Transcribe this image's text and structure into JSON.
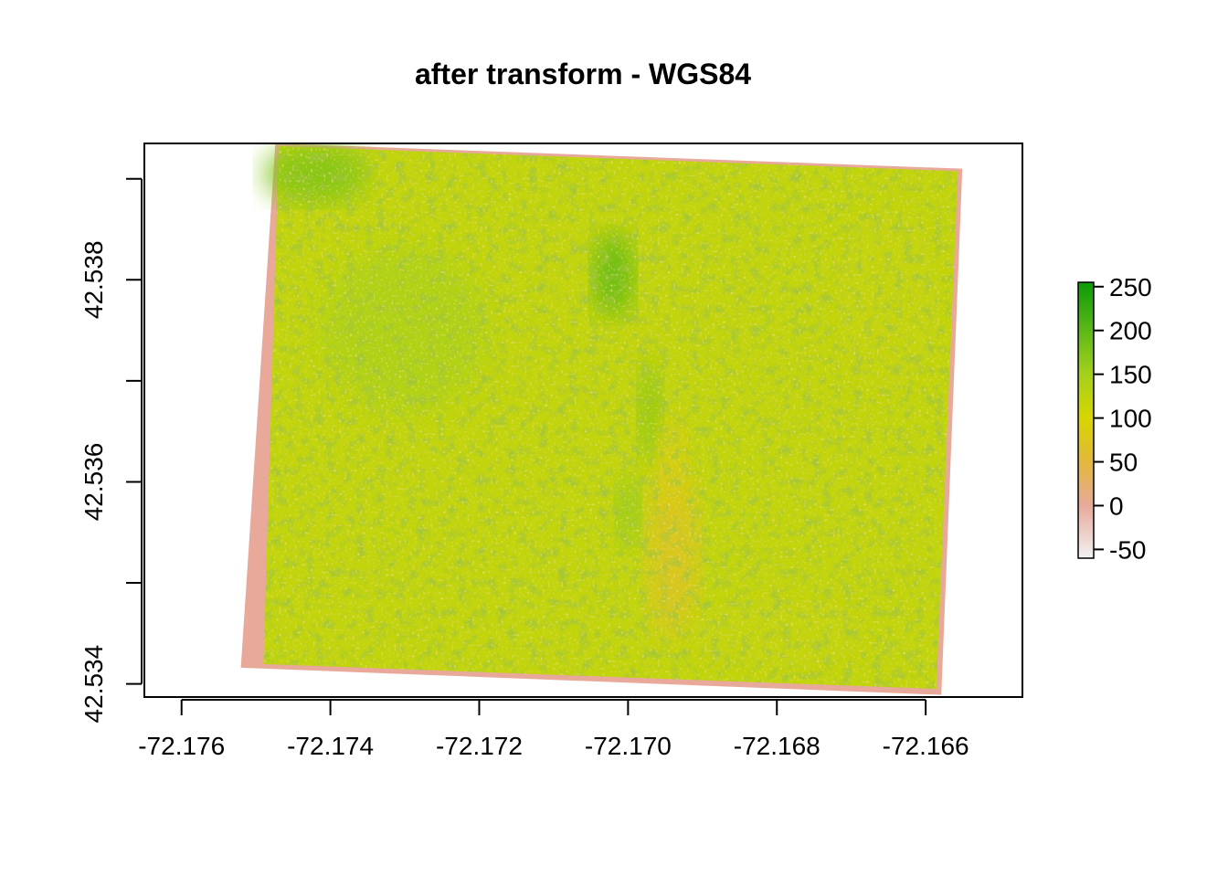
{
  "chart_data": {
    "type": "heatmap",
    "title": "after transform - WGS84",
    "xlabel": "",
    "ylabel": "",
    "xlim": [
      -72.1765,
      -72.1647
    ],
    "ylim": [
      42.53387,
      42.53935
    ],
    "x_ticks": [
      -72.176,
      -72.174,
      -72.172,
      -72.17,
      -72.168,
      -72.166
    ],
    "x_tick_labels": [
      "-72.176",
      "-72.174",
      "-72.172",
      "-72.170",
      "-72.168",
      "-72.166"
    ],
    "y_ticks": [
      42.534,
      42.535,
      42.536,
      42.537,
      42.538,
      42.539
    ],
    "y_tick_labels": [
      "42.534",
      "",
      "42.536",
      "",
      "42.538",
      ""
    ],
    "grid": false,
    "raster_footprint": {
      "corners": [
        {
          "lon": -72.17474,
          "lat": 42.53935
        },
        {
          "lon": -72.16552,
          "lat": 42.5391
        },
        {
          "lon": -72.16579,
          "lat": 42.53391
        },
        {
          "lon": -72.17497,
          "lat": 42.53416
        }
      ],
      "nodata_fill_value": 0,
      "description_of_values": "mostly 100-150 with a darker (higher) patch near lon -72.1702, lat 42.5381 and lower (~60) values in a channel near lon -72.1694, lat 42.5355"
    },
    "colorbar": {
      "position": "right",
      "range": [
        -60,
        255
      ],
      "ticks": [
        250,
        200,
        150,
        100,
        50,
        0,
        -50
      ],
      "tick_labels": [
        "250",
        "200",
        "150",
        "100",
        "50",
        "0",
        "-50"
      ],
      "color_stops": [
        {
          "value": -60,
          "color": "#f2f2f2"
        },
        {
          "value": 0,
          "color": "#e8a99a"
        },
        {
          "value": 50,
          "color": "#e3b83a"
        },
        {
          "value": 100,
          "color": "#d7d600"
        },
        {
          "value": 150,
          "color": "#a4d11b"
        },
        {
          "value": 200,
          "color": "#5cb916"
        },
        {
          "value": 255,
          "color": "#0b9a06"
        }
      ]
    }
  }
}
